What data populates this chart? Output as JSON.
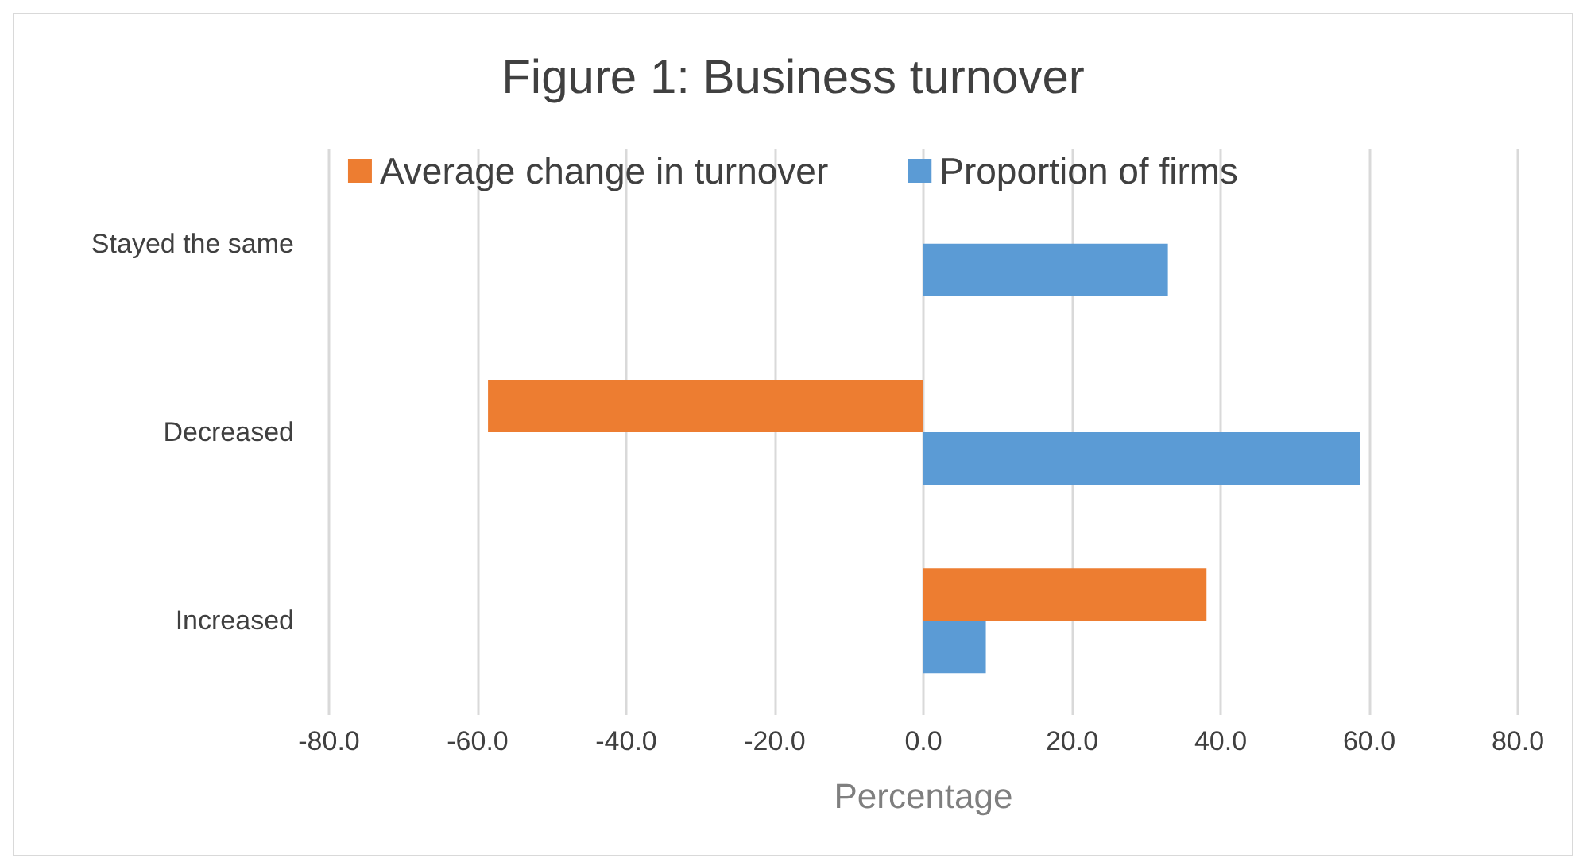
{
  "chart_data": {
    "type": "bar",
    "orientation": "horizontal",
    "title": "Figure 1: Business turnover",
    "xlabel": "Percentage",
    "categories": [
      "Stayed the same",
      "Decreased",
      "Increased"
    ],
    "series": [
      {
        "name": "Average change in turnover",
        "color": "#ed7d31",
        "values": [
          null,
          -58.6,
          38.1
        ]
      },
      {
        "name": "Proportion of firms",
        "color": "#5b9bd5",
        "values": [
          32.9,
          58.8,
          8.4
        ]
      }
    ],
    "xlim": [
      -80,
      80
    ],
    "xticks": [
      {
        "value": -80,
        "label": "-80.0"
      },
      {
        "value": -60,
        "label": "-60.0"
      },
      {
        "value": -40,
        "label": "-40.0"
      },
      {
        "value": -20,
        "label": "-20.0"
      },
      {
        "value": 0,
        "label": "0.0"
      },
      {
        "value": 20,
        "label": "20.0"
      },
      {
        "value": 40,
        "label": "40.0"
      },
      {
        "value": 60,
        "label": "60.0"
      },
      {
        "value": 80,
        "label": "80.0"
      }
    ],
    "grid": "x",
    "legend": "top"
  }
}
